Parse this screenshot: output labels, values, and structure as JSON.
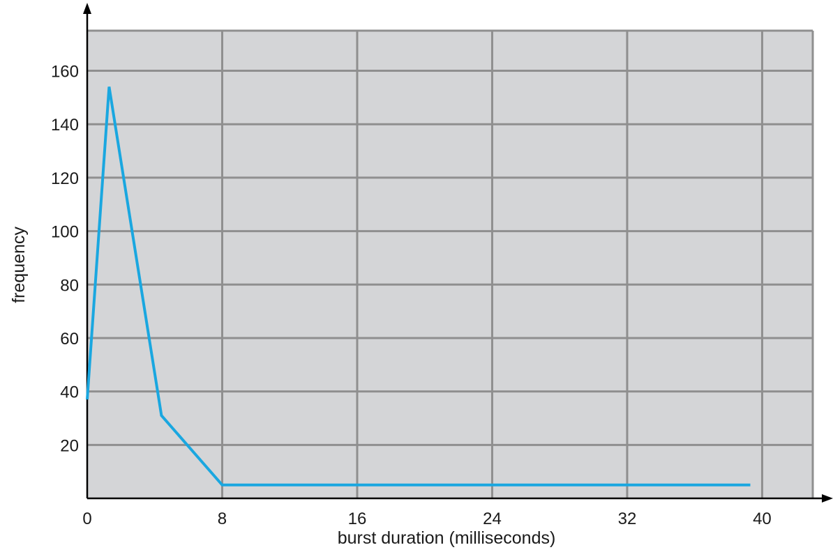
{
  "chart_data": {
    "type": "line",
    "title": "",
    "xlabel": "burst duration (milliseconds)",
    "ylabel": "frequency",
    "xlim": [
      0,
      43
    ],
    "ylim": [
      0,
      175
    ],
    "x_ticks": [
      0,
      8,
      16,
      24,
      32,
      40
    ],
    "y_ticks": [
      20,
      40,
      60,
      80,
      100,
      120,
      140,
      160
    ],
    "grid": true,
    "legend": "none",
    "colors": {
      "line": "#1aa7e0",
      "plot_background": "#d4d5d7",
      "grid": "#8f8f8f",
      "axis": "#000000"
    },
    "series": [
      {
        "x": [
          0,
          1.3,
          4.4,
          8,
          39.3
        ],
        "y": [
          37,
          154,
          31,
          5,
          5
        ]
      }
    ]
  }
}
